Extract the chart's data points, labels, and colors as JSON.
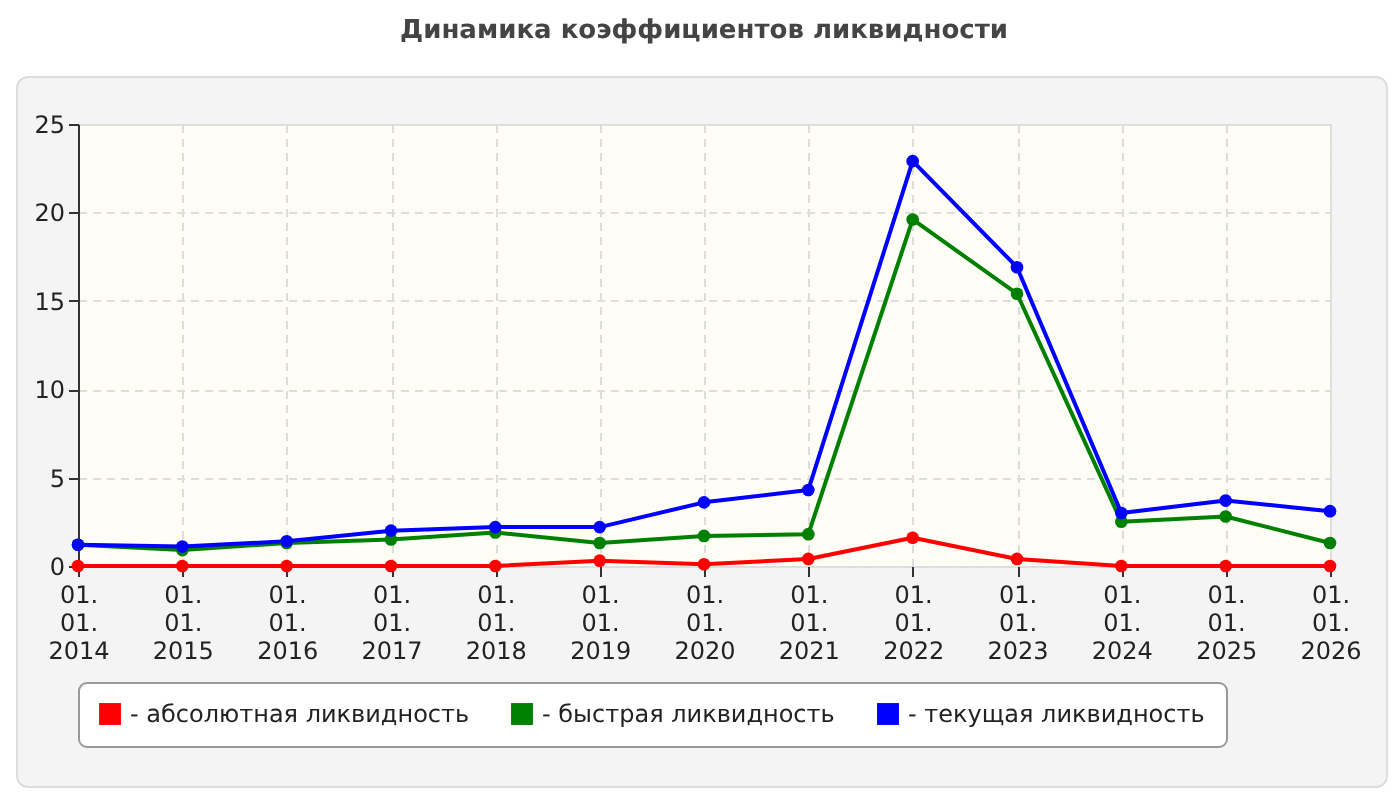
{
  "chart_data": {
    "type": "line",
    "title": "Динамика коэффициентов ликвидности",
    "categories": [
      "01.\n01.\n2014",
      "01.\n01.\n2015",
      "01.\n01.\n2016",
      "01.\n01.\n2017",
      "01.\n01.\n2018",
      "01.\n01.\n2019",
      "01.\n01.\n2020",
      "01.\n01.\n2021",
      "01.\n01.\n2022",
      "01.\n01.\n2023",
      "01.\n01.\n2024",
      "01.\n01.\n2025",
      "01.\n01.\n2026"
    ],
    "series": [
      {
        "name": "- абсолютная ликвидность",
        "color": "#ff0000",
        "values": [
          0,
          0,
          0,
          0,
          0,
          0.3,
          0.1,
          0.4,
          1.6,
          0.4,
          0,
          0,
          0
        ]
      },
      {
        "name": "- быстрая ликвидность",
        "color": "#008000",
        "values": [
          1.2,
          0.9,
          1.3,
          1.5,
          1.9,
          1.3,
          1.7,
          1.8,
          19.6,
          15.4,
          2.5,
          2.8,
          1.3
        ]
      },
      {
        "name": "- текущая ликвидность",
        "color": "#0000ff",
        "values": [
          1.2,
          1.1,
          1.4,
          2.0,
          2.2,
          2.2,
          3.6,
          4.3,
          22.9,
          16.9,
          3.0,
          3.7,
          3.1
        ]
      }
    ],
    "ylim": [
      0,
      25
    ],
    "yticks": [
      0,
      5,
      10,
      15,
      20,
      25
    ],
    "grid": true,
    "legend": "bottom",
    "marker": "circle",
    "line_style": "solid"
  }
}
